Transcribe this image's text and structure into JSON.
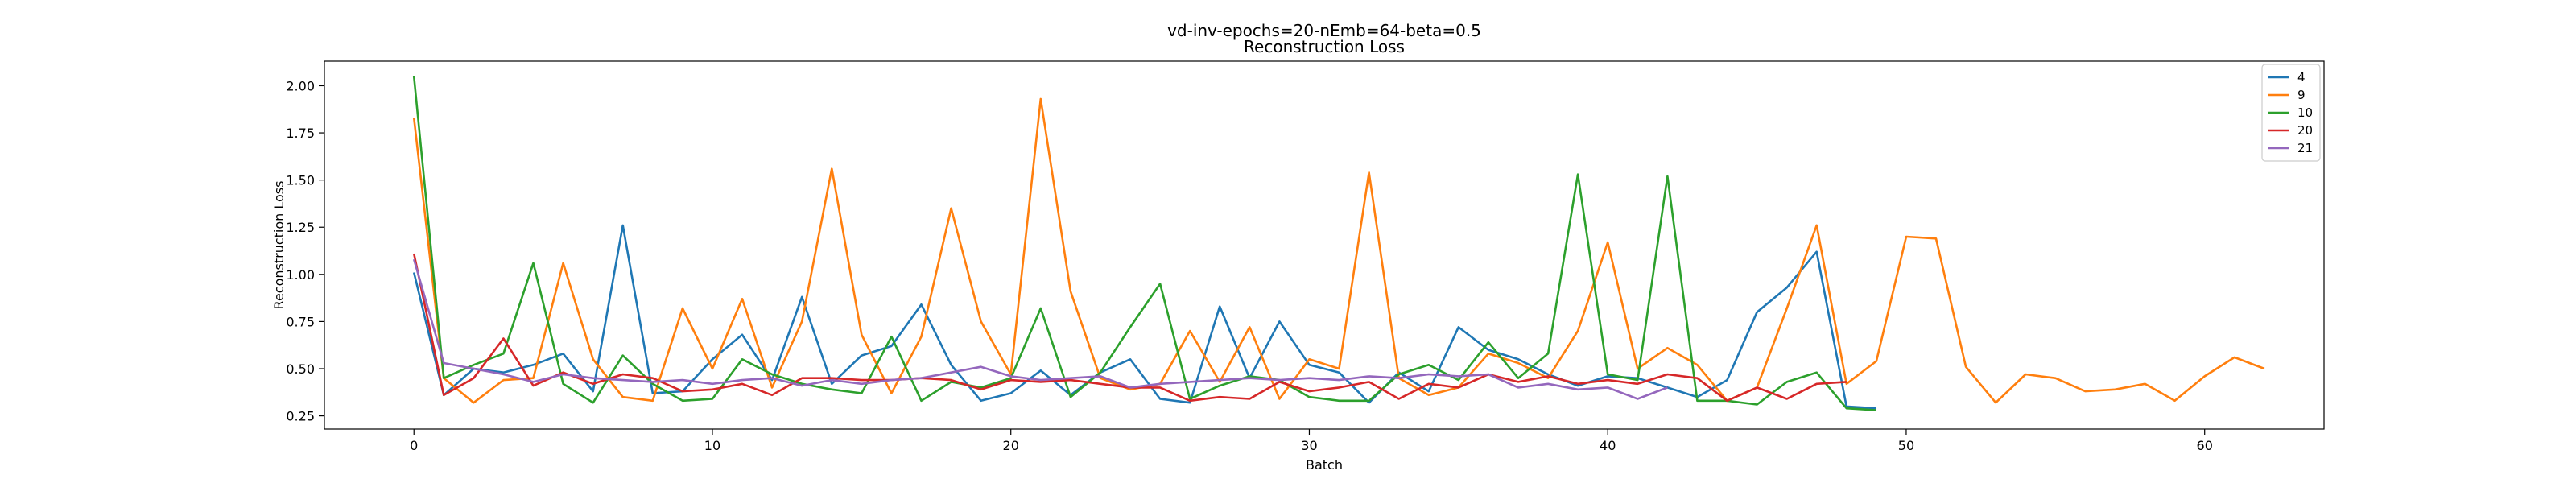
{
  "chart_data": {
    "type": "line",
    "title": "vd-inv-epochs=20-nEmb=64-beta=0.5",
    "subtitle": "Reconstruction Loss",
    "xlabel": "Batch",
    "ylabel": "Reconstruction Loss",
    "xlim": [
      -3,
      64
    ],
    "ylim": [
      0.18,
      2.13
    ],
    "xticks": [
      0,
      10,
      20,
      30,
      40,
      50,
      60
    ],
    "yticks": [
      0.25,
      0.5,
      0.75,
      1.0,
      1.25,
      1.5,
      1.75,
      2.0
    ],
    "ytick_labels": [
      "0.25",
      "0.50",
      "0.75",
      "1.00",
      "1.25",
      "1.50",
      "1.75",
      "2.00"
    ],
    "legend_position": "top-right",
    "series": [
      {
        "name": "4",
        "color": "#1f77b4",
        "values": [
          1.01,
          0.36,
          0.5,
          0.48,
          0.52,
          0.58,
          0.38,
          1.26,
          0.37,
          0.38,
          0.55,
          0.68,
          0.44,
          0.88,
          0.42,
          0.57,
          0.62,
          0.84,
          0.52,
          0.33,
          0.37,
          0.49,
          0.36,
          0.48,
          0.55,
          0.34,
          0.32,
          0.83,
          0.45,
          0.75,
          0.52,
          0.48,
          0.32,
          0.48,
          0.38,
          0.72,
          0.6,
          0.55,
          0.47,
          0.41,
          0.46,
          0.45,
          0.4,
          0.35,
          0.44,
          0.8,
          0.93,
          1.12,
          0.3,
          0.29
        ]
      },
      {
        "name": "9",
        "color": "#ff7f0e",
        "values": [
          1.83,
          0.45,
          0.32,
          0.44,
          0.45,
          1.06,
          0.55,
          0.35,
          0.33,
          0.82,
          0.5,
          0.87,
          0.4,
          0.75,
          1.56,
          0.68,
          0.37,
          0.67,
          1.35,
          0.75,
          0.47,
          1.93,
          0.91,
          0.45,
          0.39,
          0.42,
          0.7,
          0.43,
          0.72,
          0.34,
          0.55,
          0.5,
          1.54,
          0.45,
          0.36,
          0.4,
          0.58,
          0.53,
          0.45,
          0.7,
          1.17,
          0.5,
          0.61,
          0.52,
          0.33,
          0.4,
          0.82,
          1.26,
          0.42,
          0.54,
          1.2,
          1.19,
          0.51,
          0.32,
          0.47,
          0.45,
          0.38,
          0.39,
          0.42,
          0.33,
          0.46,
          0.56,
          0.5
        ]
      },
      {
        "name": "10",
        "color": "#2ca02c",
        "values": [
          2.05,
          0.45,
          0.52,
          0.58,
          1.06,
          0.42,
          0.32,
          0.57,
          0.42,
          0.33,
          0.34,
          0.55,
          0.47,
          0.42,
          0.39,
          0.37,
          0.67,
          0.33,
          0.43,
          0.4,
          0.45,
          0.82,
          0.35,
          0.48,
          0.72,
          0.95,
          0.34,
          0.41,
          0.46,
          0.44,
          0.35,
          0.33,
          0.33,
          0.47,
          0.52,
          0.44,
          0.64,
          0.45,
          0.58,
          1.53,
          0.47,
          0.44,
          1.52,
          0.33,
          0.33,
          0.31,
          0.43,
          0.48,
          0.29,
          0.28
        ]
      },
      {
        "name": "20",
        "color": "#d62728",
        "values": [
          1.11,
          0.36,
          0.45,
          0.66,
          0.41,
          0.48,
          0.42,
          0.47,
          0.45,
          0.38,
          0.39,
          0.42,
          0.36,
          0.45,
          0.45,
          0.44,
          0.44,
          0.45,
          0.44,
          0.39,
          0.44,
          0.43,
          0.44,
          0.42,
          0.4,
          0.4,
          0.33,
          0.35,
          0.34,
          0.43,
          0.38,
          0.4,
          0.43,
          0.34,
          0.42,
          0.4,
          0.47,
          0.43,
          0.46,
          0.42,
          0.44,
          0.42,
          0.47,
          0.45,
          0.33,
          0.4,
          0.34,
          0.42,
          0.43
        ]
      },
      {
        "name": "21",
        "color": "#9467bd",
        "values": [
          1.08,
          0.53,
          0.5,
          0.47,
          0.43,
          0.47,
          0.45,
          0.44,
          0.43,
          0.44,
          0.42,
          0.44,
          0.45,
          0.41,
          0.44,
          0.42,
          0.44,
          0.45,
          0.48,
          0.51,
          0.46,
          0.44,
          0.45,
          0.46,
          0.4,
          0.42,
          0.43,
          0.44,
          0.45,
          0.44,
          0.45,
          0.44,
          0.46,
          0.45,
          0.47,
          0.46,
          0.47,
          0.4,
          0.42,
          0.39,
          0.4,
          0.34,
          0.4
        ]
      }
    ]
  }
}
